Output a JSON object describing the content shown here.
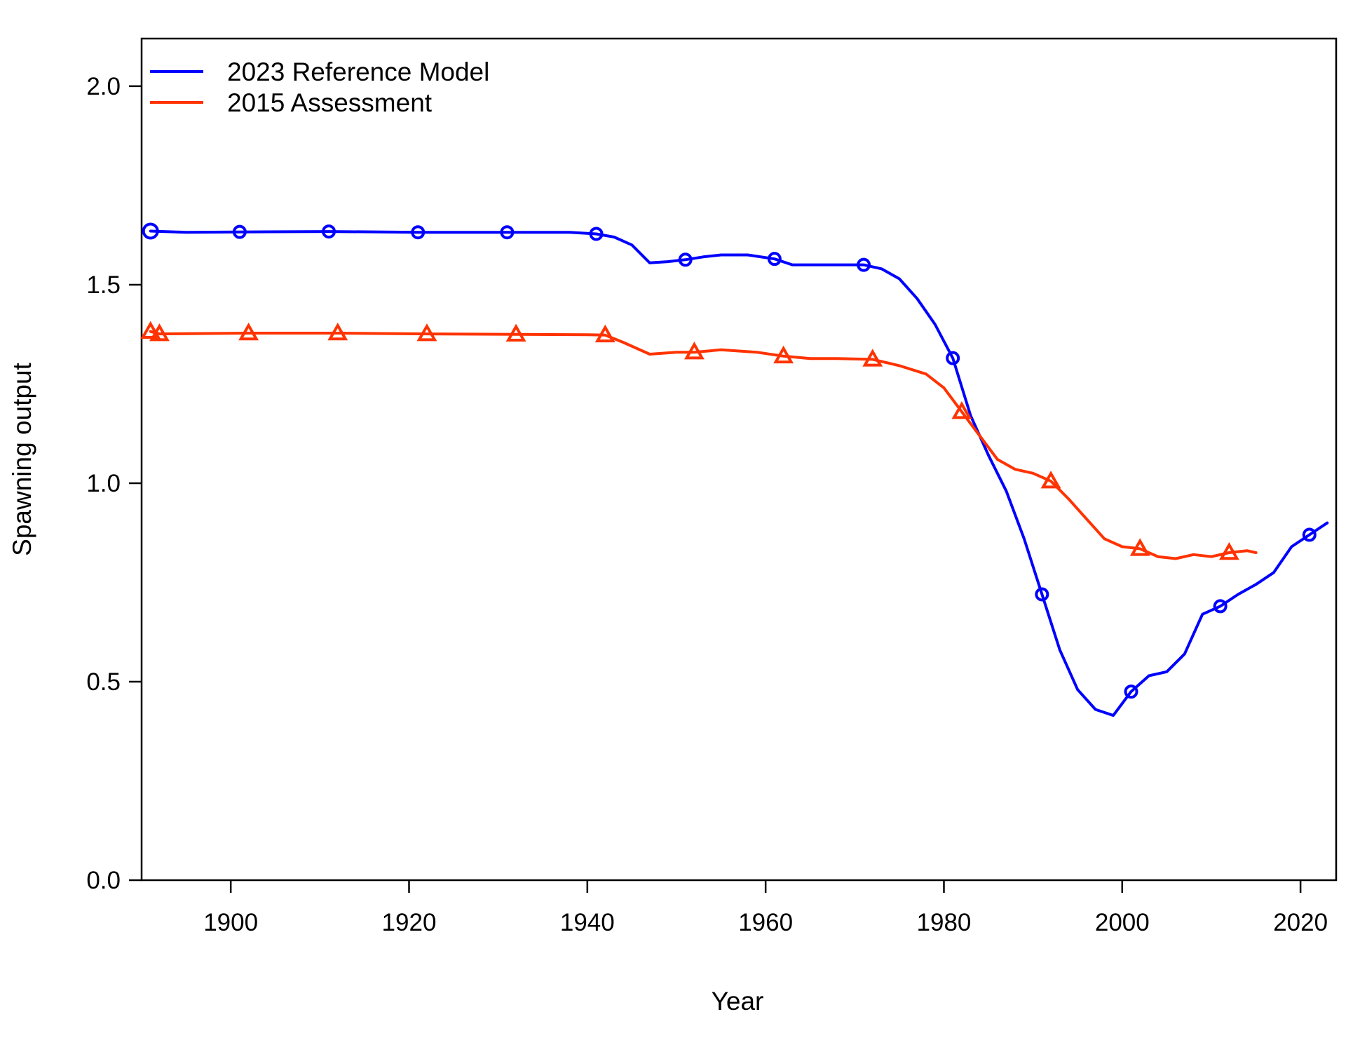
{
  "chart_data": {
    "type": "line",
    "xlabel": "Year",
    "ylabel": "Spawning output",
    "xlim": [
      1890,
      2024
    ],
    "ylim": [
      0,
      2.12
    ],
    "xticks": [
      1900,
      1920,
      1940,
      1960,
      1980,
      2000,
      2020
    ],
    "yticks": [
      "0.0",
      "0.5",
      "1.0",
      "1.5",
      "2.0"
    ],
    "legend_position": "top-left",
    "series": [
      {
        "name": "2023 Reference Model",
        "color": "#0000ff",
        "marker": "circle",
        "x": [
          1891,
          1895,
          1901,
          1911,
          1921,
          1931,
          1938,
          1941,
          1943,
          1945,
          1947,
          1949,
          1951,
          1953,
          1955,
          1958,
          1961,
          1963,
          1966,
          1969,
          1971,
          1973,
          1975,
          1977,
          1979,
          1981,
          1983,
          1985,
          1987,
          1989,
          1991,
          1993,
          1995,
          1997,
          1999,
          2001,
          2003,
          2005,
          2007,
          2009,
          2011,
          2013,
          2015,
          2017,
          2019,
          2021,
          2023
        ],
        "y": [
          1.635,
          1.632,
          1.633,
          1.634,
          1.632,
          1.632,
          1.632,
          1.628,
          1.62,
          1.6,
          1.555,
          1.558,
          1.563,
          1.57,
          1.575,
          1.575,
          1.565,
          1.55,
          1.55,
          1.55,
          1.55,
          1.54,
          1.515,
          1.465,
          1.4,
          1.315,
          1.17,
          1.07,
          0.98,
          0.86,
          0.72,
          0.58,
          0.48,
          0.43,
          0.415,
          0.475,
          0.515,
          0.525,
          0.57,
          0.67,
          0.69,
          0.72,
          0.745,
          0.775,
          0.84,
          0.87,
          0.9
        ],
        "markers_x": [
          1891,
          1901,
          1911,
          1921,
          1931,
          1941,
          1951,
          1961,
          1971,
          1981,
          1991,
          2001,
          2011,
          2021
        ],
        "markers_y": [
          1.635,
          1.633,
          1.634,
          1.632,
          1.632,
          1.628,
          1.563,
          1.565,
          1.55,
          1.315,
          0.72,
          0.475,
          0.69,
          0.87
        ]
      },
      {
        "name": "2015 Assessment",
        "color": "#ff3300",
        "marker": "triangle",
        "x": [
          1891,
          1892,
          1902,
          1912,
          1922,
          1932,
          1940,
          1942,
          1944,
          1947,
          1950,
          1952,
          1955,
          1959,
          1962,
          1965,
          1968,
          1972,
          1975,
          1978,
          1980,
          1982,
          1984,
          1986,
          1988,
          1990,
          1992,
          1994,
          1996,
          1998,
          2000,
          2002,
          2004,
          2006,
          2008,
          2010,
          2012,
          2014,
          2015
        ],
        "y": [
          1.382,
          1.376,
          1.378,
          1.378,
          1.376,
          1.375,
          1.374,
          1.373,
          1.355,
          1.325,
          1.33,
          1.33,
          1.336,
          1.33,
          1.32,
          1.314,
          1.314,
          1.312,
          1.296,
          1.275,
          1.24,
          1.18,
          1.12,
          1.06,
          1.035,
          1.025,
          1.005,
          0.96,
          0.91,
          0.86,
          0.84,
          0.835,
          0.815,
          0.81,
          0.82,
          0.815,
          0.825,
          0.83,
          0.825
        ],
        "markers_x": [
          1891,
          1892,
          1902,
          1912,
          1922,
          1932,
          1942,
          1952,
          1962,
          1972,
          1982,
          1992,
          2002,
          2012
        ],
        "markers_y": [
          1.382,
          1.376,
          1.378,
          1.378,
          1.376,
          1.375,
          1.373,
          1.33,
          1.32,
          1.312,
          1.18,
          1.005,
          0.835,
          0.825
        ]
      }
    ]
  }
}
